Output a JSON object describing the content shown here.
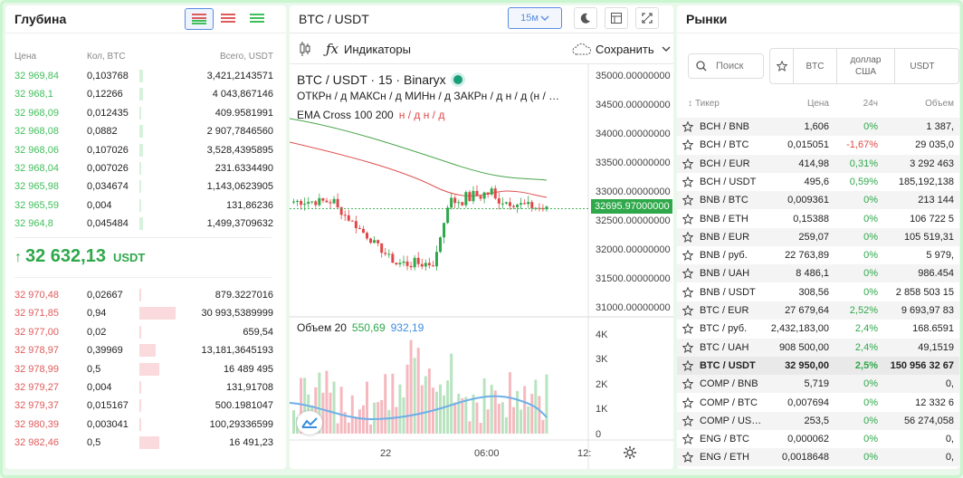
{
  "depth": {
    "title": "Глубина",
    "headers": {
      "price": "Цена",
      "qty": "Кол, BTC",
      "total": "Всего, USDT"
    },
    "bids_top": [
      {
        "price": "32 969,84",
        "qty": "0,103768",
        "total": "3,421,2143571"
      },
      {
        "price": "32 968,1",
        "qty": "0,12266",
        "total": "4 043,867146"
      },
      {
        "price": "32 968,09",
        "qty": "0,012435",
        "total": "409.9581991"
      },
      {
        "price": "32 968,08",
        "qty": "0,0882",
        "total": "2 907,7846560"
      },
      {
        "price": "32 968,06",
        "qty": "0,107026",
        "total": "3,528,4395895"
      },
      {
        "price": "32 968,04",
        "qty": "0,007026",
        "total": "231.6334490"
      },
      {
        "price": "32 965,98",
        "qty": "0,034674",
        "total": "1,143,0623905"
      },
      {
        "price": "32 965,59",
        "qty": "0,004",
        "total": "131,86236"
      },
      {
        "price": "32 964,8",
        "qty": "0,045484",
        "total": "1,499,3709632"
      }
    ],
    "last_price": "32 632,13",
    "last_currency": "USDT",
    "last_arrow": "↑",
    "asks": [
      {
        "price": "32 970,48",
        "qty": "0,02667",
        "total": "879.3227016"
      },
      {
        "price": "32 971,85",
        "qty": "0,94",
        "total": "30 993,5389999"
      },
      {
        "price": "32 977,00",
        "qty": "0,02",
        "total": "659,54"
      },
      {
        "price": "32 978,97",
        "qty": "0,39969",
        "total": "13,181,3645193"
      },
      {
        "price": "32 978,99",
        "qty": "0,5",
        "total": "16 489 495"
      },
      {
        "price": "32 979,27",
        "qty": "0,004",
        "total": "131,91708"
      },
      {
        "price": "32 979,37",
        "qty": "0,015167",
        "total": "500.1981047"
      },
      {
        "price": "32 980,39",
        "qty": "0,003041",
        "total": "100,29336599"
      },
      {
        "price": "32 982,46",
        "qty": "0,5",
        "total": "16 491,23"
      }
    ]
  },
  "chart": {
    "pair": "BTC / USDT",
    "interval_btn": "15м",
    "indicators_label": "Индикаторы",
    "save_label": "Сохранить",
    "legend_title": "BTC / USDT · 15 · Binaryx",
    "ohlc": "ОТКРн / д МАКСн / д МИНн / д ЗАКРн / д н / д (н / …",
    "ema": "EMA Cross 100 200",
    "ema_vals": "н / д н / д",
    "volume_label": "Объем 20",
    "vol_a": "550,69",
    "vol_b": "932,19",
    "price_badge": "32695.97000000",
    "x_ticks": [
      "22",
      "06:00",
      "12:"
    ],
    "accent": "#2ea84a",
    "down": "#e04848"
  },
  "chart_data": {
    "type": "line",
    "y_ticks": [
      "35000.00000000",
      "34500.00000000",
      "34000.00000000",
      "33500.00000000",
      "33000.00000000",
      "32500.00000000",
      "32000.00000000",
      "31500.00000000",
      "31000.00000000"
    ],
    "vol_ticks": [
      "4K",
      "3K",
      "2K",
      "1K",
      "0"
    ],
    "ylim": [
      31000,
      35000
    ],
    "last_price": 32695.97
  },
  "markets": {
    "title": "Рынки",
    "search_placeholder": "Поиск",
    "filters": [
      "BTC",
      "доллар США",
      "USDT"
    ],
    "headers": {
      "ticker": "Тикер",
      "price": "Цена",
      "change": "24ч",
      "volume": "Объем"
    },
    "rows": [
      {
        "t": "BCH / BNB",
        "p": "1,606",
        "c": "0%",
        "v": "1 387,"
      },
      {
        "t": "BCH / BTC",
        "p": "0,015051",
        "c": "-1,67%",
        "v": "29 035,0"
      },
      {
        "t": "BCH / EUR",
        "p": "414,98",
        "c": "0,31%",
        "v": "3 292 463"
      },
      {
        "t": "BCH / USDT",
        "p": "495,6",
        "c": "0,59%",
        "v": "185,192,138"
      },
      {
        "t": "BNB / BTC",
        "p": "0,009361",
        "c": "0%",
        "v": "213 144"
      },
      {
        "t": "BNB / ETH",
        "p": "0,15388",
        "c": "0%",
        "v": "106 722 5"
      },
      {
        "t": "BNB / EUR",
        "p": "259,07",
        "c": "0%",
        "v": "105 519,31"
      },
      {
        "t": "BNB / руб.",
        "p": "22 763,89",
        "c": "0%",
        "v": "5 979,"
      },
      {
        "t": "BNB / UAH",
        "p": "8 486,1",
        "c": "0%",
        "v": "986.454"
      },
      {
        "t": "BNB / USDT",
        "p": "308,56",
        "c": "0%",
        "v": "2 858 503 15"
      },
      {
        "t": "BTC / EUR",
        "p": "27 679,64",
        "c": "2,52%",
        "v": "9 693,97 83"
      },
      {
        "t": "BTC / руб.",
        "p": "2,432,183,00",
        "c": "2,4%",
        "v": "168.6591"
      },
      {
        "t": "BTC / UAH",
        "p": "908 500,00",
        "c": "2,4%",
        "v": "49,1519"
      },
      {
        "t": "BTC / USDT",
        "p": "32 950,00",
        "c": "2,5%",
        "v": "150 956 32 67"
      },
      {
        "t": "COMP / BNB",
        "p": "5,719",
        "c": "0%",
        "v": "0,"
      },
      {
        "t": "COMP / BTC",
        "p": "0,007694",
        "c": "0%",
        "v": "12 332 6"
      },
      {
        "t": "COMP / US…",
        "p": "253,5",
        "c": "0%",
        "v": "56 274,058"
      },
      {
        "t": "ENG / BTC",
        "p": "0,000062",
        "c": "0%",
        "v": "0,"
      },
      {
        "t": "ENG / ETH",
        "p": "0,0018648",
        "c": "0%",
        "v": "0,"
      }
    ]
  }
}
